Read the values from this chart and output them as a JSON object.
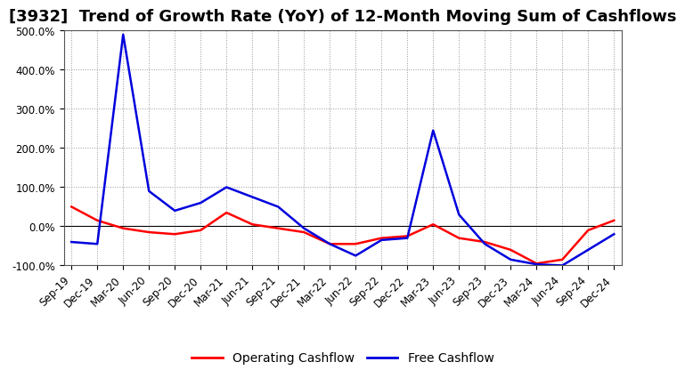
{
  "title": "[3932]  Trend of Growth Rate (YoY) of 12-Month Moving Sum of Cashflows",
  "x_labels": [
    "Sep-19",
    "Dec-19",
    "Mar-20",
    "Jun-20",
    "Sep-20",
    "Dec-20",
    "Mar-21",
    "Jun-21",
    "Sep-21",
    "Dec-21",
    "Mar-22",
    "Jun-22",
    "Sep-22",
    "Dec-22",
    "Mar-23",
    "Jun-23",
    "Sep-23",
    "Dec-23",
    "Mar-24",
    "Jun-24",
    "Sep-24",
    "Dec-24"
  ],
  "operating_cashflow": [
    50,
    15,
    -5,
    -15,
    -20,
    -10,
    35,
    5,
    -5,
    -15,
    -45,
    -45,
    -30,
    -25,
    5,
    -30,
    -40,
    -60,
    -95,
    -85,
    -10,
    15
  ],
  "free_cashflow": [
    -40,
    -45,
    490,
    90,
    40,
    60,
    100,
    75,
    50,
    -5,
    -45,
    -75,
    -35,
    -30,
    245,
    30,
    -45,
    -85,
    -97,
    -100,
    -60,
    -20
  ],
  "ylim": [
    -100,
    500
  ],
  "yticks": [
    -100,
    0,
    100,
    200,
    300,
    400,
    500
  ],
  "operating_color": "#ff0000",
  "free_color": "#0000dd",
  "background_color": "#ffffff",
  "grid_color": "#999999",
  "legend_labels": [
    "Operating Cashflow",
    "Free Cashflow"
  ],
  "title_fontsize": 13,
  "tick_fontsize": 8.5,
  "legend_fontsize": 10
}
